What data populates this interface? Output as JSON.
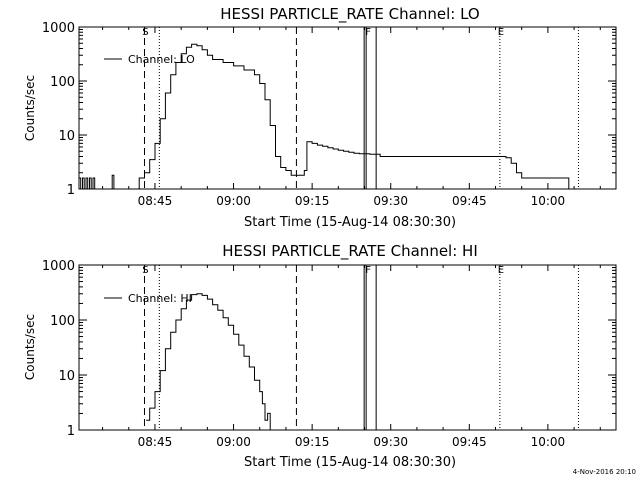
{
  "colors": {
    "background": "#ffffff",
    "foreground": "#000000"
  },
  "footer": {
    "timestamp": "4-Nov-2016 20:10"
  },
  "chart_data": [
    {
      "type": "line",
      "title": "HESSI PARTICLE_RATE Channel: LO",
      "xlabel": "Start Time (15-Aug-14 08:30:30)",
      "ylabel": "Counts/sec",
      "y_scale": "log",
      "ylim": [
        1,
        1000
      ],
      "xlim": [
        "08:30:30",
        "10:13:00"
      ],
      "x_ticks": [
        "08:45",
        "09:00",
        "09:15",
        "09:30",
        "09:45",
        "10:00"
      ],
      "y_ticks": [
        "1",
        "10",
        "100",
        "1000"
      ],
      "legend": {
        "label": "Channel: LO",
        "position": "top-left"
      },
      "markers": [
        {
          "label": "S",
          "time": "08:43:00",
          "style": "dashed"
        },
        {
          "label": "",
          "time": "08:45:50",
          "style": "dotted"
        },
        {
          "label": "",
          "time": "09:12:00",
          "style": "dashed"
        },
        {
          "label": "F",
          "time": "09:25:30",
          "style": "solid-pair"
        },
        {
          "label": "E",
          "time": "09:50:50",
          "style": "dotted"
        },
        {
          "label": "",
          "time": "10:05:50",
          "style": "dotted"
        }
      ],
      "series": [
        {
          "name": "Channel: LO",
          "points": [
            [
              "08:30:30",
              1.6
            ],
            [
              "08:30:50",
              1.0
            ],
            [
              "08:31:10",
              1.6
            ],
            [
              "08:31:30",
              1.0
            ],
            [
              "08:31:50",
              1.6
            ],
            [
              "08:32:10",
              1.0
            ],
            [
              "08:32:30",
              1.6
            ],
            [
              "08:32:50",
              1.0
            ],
            [
              "08:33:10",
              1.6
            ],
            [
              "08:33:30",
              1.0
            ],
            [
              "08:34:00",
              1.0
            ],
            [
              "08:36:30",
              1.0
            ],
            [
              "08:36:50",
              1.8
            ],
            [
              "08:37:10",
              1.0
            ],
            [
              "08:41:00",
              1.0
            ],
            [
              "08:42:00",
              1.6
            ],
            [
              "08:43:00",
              2.0
            ],
            [
              "08:44:00",
              3.5
            ],
            [
              "08:45:00",
              7.0
            ],
            [
              "08:46:00",
              20
            ],
            [
              "08:47:00",
              60
            ],
            [
              "08:48:00",
              130
            ],
            [
              "08:49:00",
              220
            ],
            [
              "08:50:00",
              320
            ],
            [
              "08:51:00",
              420
            ],
            [
              "08:52:00",
              480
            ],
            [
              "08:53:00",
              450
            ],
            [
              "08:54:00",
              380
            ],
            [
              "08:55:00",
              300
            ],
            [
              "08:56:00",
              250
            ],
            [
              "08:58:00",
              220
            ],
            [
              "09:00:00",
              190
            ],
            [
              "09:02:00",
              160
            ],
            [
              "09:04:00",
              130
            ],
            [
              "09:05:00",
              90
            ],
            [
              "09:06:00",
              45
            ],
            [
              "09:07:00",
              15
            ],
            [
              "09:08:00",
              4.0
            ],
            [
              "09:09:00",
              2.5
            ],
            [
              "09:10:00",
              2.2
            ],
            [
              "09:11:00",
              1.8
            ],
            [
              "09:12:00",
              1.8
            ],
            [
              "09:13:00",
              1.8
            ],
            [
              "09:13:30",
              2.2
            ],
            [
              "09:14:00",
              7.5
            ],
            [
              "09:15:00",
              7.0
            ],
            [
              "09:16:00",
              6.5
            ],
            [
              "09:17:00",
              6.2
            ],
            [
              "09:18:00",
              5.8
            ],
            [
              "09:19:00",
              5.5
            ],
            [
              "09:20:00",
              5.2
            ],
            [
              "09:21:00",
              5.0
            ],
            [
              "09:22:00",
              4.8
            ],
            [
              "09:23:00",
              4.6
            ],
            [
              "09:24:00",
              4.5
            ],
            [
              "09:26:00",
              4.4
            ],
            [
              "09:28:00",
              4.0
            ],
            [
              "09:30:00",
              4.0
            ],
            [
              "09:32:00",
              4.0
            ],
            [
              "09:34:00",
              4.0
            ],
            [
              "09:36:00",
              4.0
            ],
            [
              "09:38:00",
              4.0
            ],
            [
              "09:40:00",
              4.0
            ],
            [
              "09:42:00",
              4.0
            ],
            [
              "09:44:00",
              4.0
            ],
            [
              "09:46:00",
              4.0
            ],
            [
              "09:48:00",
              4.0
            ],
            [
              "09:50:00",
              4.0
            ],
            [
              "09:52:00",
              3.8
            ],
            [
              "09:53:00",
              3.0
            ],
            [
              "09:54:00",
              2.0
            ],
            [
              "09:55:00",
              1.6
            ],
            [
              "09:56:00",
              1.6
            ],
            [
              "10:02:00",
              1.6
            ],
            [
              "10:03:00",
              1.6
            ],
            [
              "10:04:00",
              1.0
            ]
          ]
        }
      ]
    },
    {
      "type": "line",
      "title": "HESSI PARTICLE_RATE Channel: HI",
      "xlabel": "Start Time (15-Aug-14 08:30:30)",
      "ylabel": "Counts/sec",
      "y_scale": "log",
      "ylim": [
        1,
        1000
      ],
      "xlim": [
        "08:30:30",
        "10:13:00"
      ],
      "x_ticks": [
        "08:45",
        "09:00",
        "09:15",
        "09:30",
        "09:45",
        "10:00"
      ],
      "y_ticks": [
        "1",
        "10",
        "100",
        "1000"
      ],
      "legend": {
        "label": "Channel: HI",
        "position": "top-left"
      },
      "markers": [
        {
          "label": "S",
          "time": "08:43:00",
          "style": "dashed"
        },
        {
          "label": "",
          "time": "08:45:50",
          "style": "dotted"
        },
        {
          "label": "",
          "time": "09:12:00",
          "style": "dashed"
        },
        {
          "label": "F",
          "time": "09:25:30",
          "style": "solid-pair"
        },
        {
          "label": "E",
          "time": "09:50:50",
          "style": "dotted"
        },
        {
          "label": "",
          "time": "10:05:50",
          "style": "dotted"
        }
      ],
      "series": [
        {
          "name": "Channel: HI",
          "points": [
            [
              "08:43:20",
              1.5
            ],
            [
              "08:44:00",
              2.5
            ],
            [
              "08:45:00",
              5.0
            ],
            [
              "08:46:00",
              12
            ],
            [
              "08:47:00",
              30
            ],
            [
              "08:48:00",
              60
            ],
            [
              "08:49:00",
              100
            ],
            [
              "08:50:00",
              160
            ],
            [
              "08:51:00",
              230
            ],
            [
              "08:52:00",
              290
            ],
            [
              "08:53:00",
              300
            ],
            [
              "08:54:00",
              280
            ],
            [
              "08:55:00",
              240
            ],
            [
              "08:56:00",
              190
            ],
            [
              "08:57:00",
              150
            ],
            [
              "08:58:00",
              110
            ],
            [
              "08:59:00",
              80
            ],
            [
              "09:00:00",
              55
            ],
            [
              "09:01:00",
              35
            ],
            [
              "09:02:00",
              22
            ],
            [
              "09:03:00",
              14
            ],
            [
              "09:04:00",
              8.0
            ],
            [
              "09:05:00",
              5.0
            ],
            [
              "09:05:30",
              3.0
            ],
            [
              "09:06:00",
              1.5
            ],
            [
              "09:06:30",
              2.0
            ],
            [
              "09:07:00",
              1.0
            ]
          ]
        }
      ]
    }
  ]
}
